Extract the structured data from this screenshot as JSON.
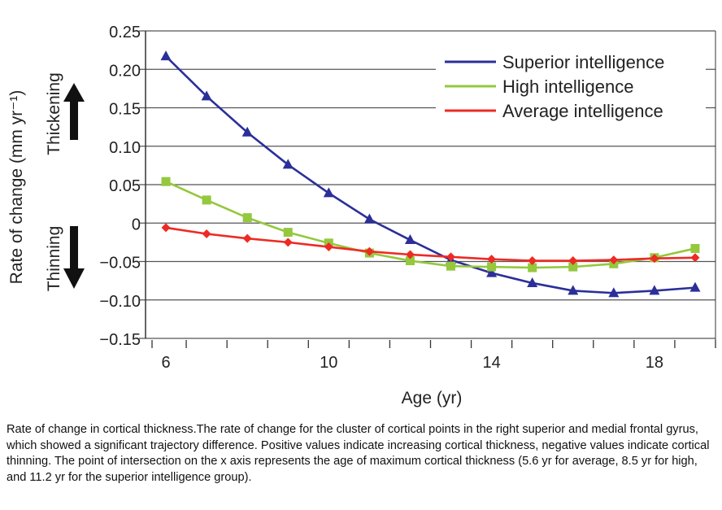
{
  "chart_data": {
    "type": "line",
    "xlabel": "Age (yr)",
    "ylabel": "Rate of change (mm yr⁻¹)",
    "annotations": {
      "up": "Thickening",
      "down": "Thinning"
    },
    "ylim": [
      -0.15,
      0.25
    ],
    "yticks": [
      0.25,
      0.2,
      0.15,
      0.1,
      0.05,
      0,
      -0.05,
      -0.1,
      -0.15
    ],
    "ytick_labels": [
      "0.25",
      "0.20",
      "0.15",
      "0.10",
      "0.05",
      "0",
      "−0.05",
      "−0.10",
      "−0.15"
    ],
    "x": [
      6,
      7,
      8,
      9,
      10,
      11,
      12,
      13,
      14,
      15,
      16,
      17,
      18,
      19
    ],
    "xtick_labels": [
      "6",
      "10",
      "14",
      "18"
    ],
    "grid": "horizontal",
    "legend_position": "top-right",
    "series": [
      {
        "name": "Superior intelligence",
        "color": "#2b2f99",
        "marker": "triangle",
        "values": [
          0.217,
          0.165,
          0.118,
          0.076,
          0.039,
          0.005,
          -0.022,
          -0.048,
          -0.065,
          -0.078,
          -0.088,
          -0.091,
          -0.088,
          -0.084
        ]
      },
      {
        "name": "High intelligence",
        "color": "#94c83d",
        "marker": "square",
        "values": [
          0.054,
          0.03,
          0.007,
          -0.012,
          -0.026,
          -0.039,
          -0.049,
          -0.056,
          -0.057,
          -0.058,
          -0.057,
          -0.053,
          -0.045,
          -0.033
        ]
      },
      {
        "name": "Average intelligence",
        "color": "#ee2a24",
        "marker": "diamond",
        "values": [
          -0.006,
          -0.014,
          -0.02,
          -0.025,
          -0.031,
          -0.037,
          -0.041,
          -0.044,
          -0.047,
          -0.049,
          -0.049,
          -0.048,
          -0.046,
          -0.045
        ]
      }
    ]
  },
  "caption": "Rate of change in cortical thickness.The rate of change for the cluster of cortical points in the right superior and medial frontal gyrus, which showed a significant trajectory difference. Positive values indicate increasing cortical thickness, negative values indicate cortical thinning. The point of intersection on the x axis represents the age of maximum cortical thickness (5.6 yr for average, 8.5 yr for high, and 11.2 yr for the superior intelligence group)."
}
